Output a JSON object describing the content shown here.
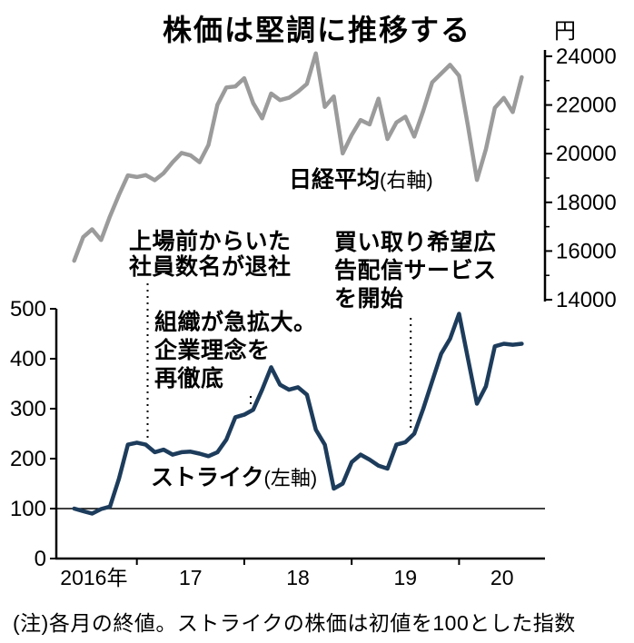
{
  "title": "株価は堅調に推移する",
  "note": "(注)各月の終値。ストライクの株価は初値を100とした指数",
  "chart_data": {
    "type": "line",
    "x_start": 2016.4167,
    "x_step": 0.08333,
    "x_axis": {
      "tick_labels": [
        {
          "label": "2016年",
          "t": 2016.6
        },
        {
          "label": "17",
          "t": 2017.5
        },
        {
          "label": "18",
          "t": 2018.5
        },
        {
          "label": "19",
          "t": 2019.5
        },
        {
          "label": "20",
          "t": 2020.4
        }
      ],
      "tick_marks": [
        2017,
        2018,
        2019,
        2020
      ]
    },
    "left_axis": {
      "range": [
        0,
        500
      ],
      "ticks": [
        500,
        400,
        300,
        200,
        100,
        0
      ],
      "baseline": 100
    },
    "right_axis": {
      "range": [
        14000,
        24000
      ],
      "ticks": [
        24000,
        22000,
        20000,
        18000,
        16000,
        14000
      ],
      "minor_ticks": [
        23000,
        21000,
        19000,
        17000,
        15000
      ],
      "unit": "円"
    },
    "series": [
      {
        "id": "nikkei-average",
        "name": "日経平均",
        "axis_note": "(右軸)",
        "axis": "right",
        "color": "#9b9b9b",
        "values": [
          15600,
          16570,
          16890,
          16450,
          17430,
          18310,
          19110,
          19040,
          19120,
          18910,
          19200,
          19650,
          20030,
          19930,
          19650,
          20360,
          22010,
          22720,
          22760,
          23100,
          22070,
          21450,
          22470,
          22200,
          22300,
          22550,
          22870,
          24120,
          21920,
          22350,
          20010,
          20770,
          21380,
          21200,
          22260,
          20600,
          21280,
          21520,
          20700,
          21760,
          22930,
          23290,
          23650,
          23200,
          21140,
          18920,
          20190,
          21880,
          22290,
          21710,
          23140
        ]
      },
      {
        "id": "strike",
        "name": "ストライク",
        "axis_note": "(左軸)",
        "axis": "left",
        "color": "#1d3c5c",
        "values": [
          100,
          95,
          90,
          99,
          104,
          160,
          228,
          232,
          228,
          213,
          218,
          208,
          213,
          214,
          210,
          205,
          213,
          238,
          283,
          288,
          298,
          338,
          383,
          348,
          338,
          343,
          328,
          258,
          228,
          140,
          150,
          193,
          208,
          198,
          186,
          180,
          228,
          233,
          250,
          300,
          355,
          410,
          440,
          490,
          400,
          310,
          345,
          425,
          430,
          428,
          430
        ]
      }
    ],
    "annotations": [
      {
        "t": 2017.1,
        "lines": [
          "上場前からいた",
          "社員数名が退社"
        ]
      },
      {
        "t": 2018.06,
        "lines": [
          "組織が急拡大。",
          "企業理念を",
          "再徹底"
        ]
      },
      {
        "t": 2019.55,
        "lines": [
          "買い取り希望広",
          "告配信サービス",
          "を開始"
        ]
      }
    ]
  }
}
